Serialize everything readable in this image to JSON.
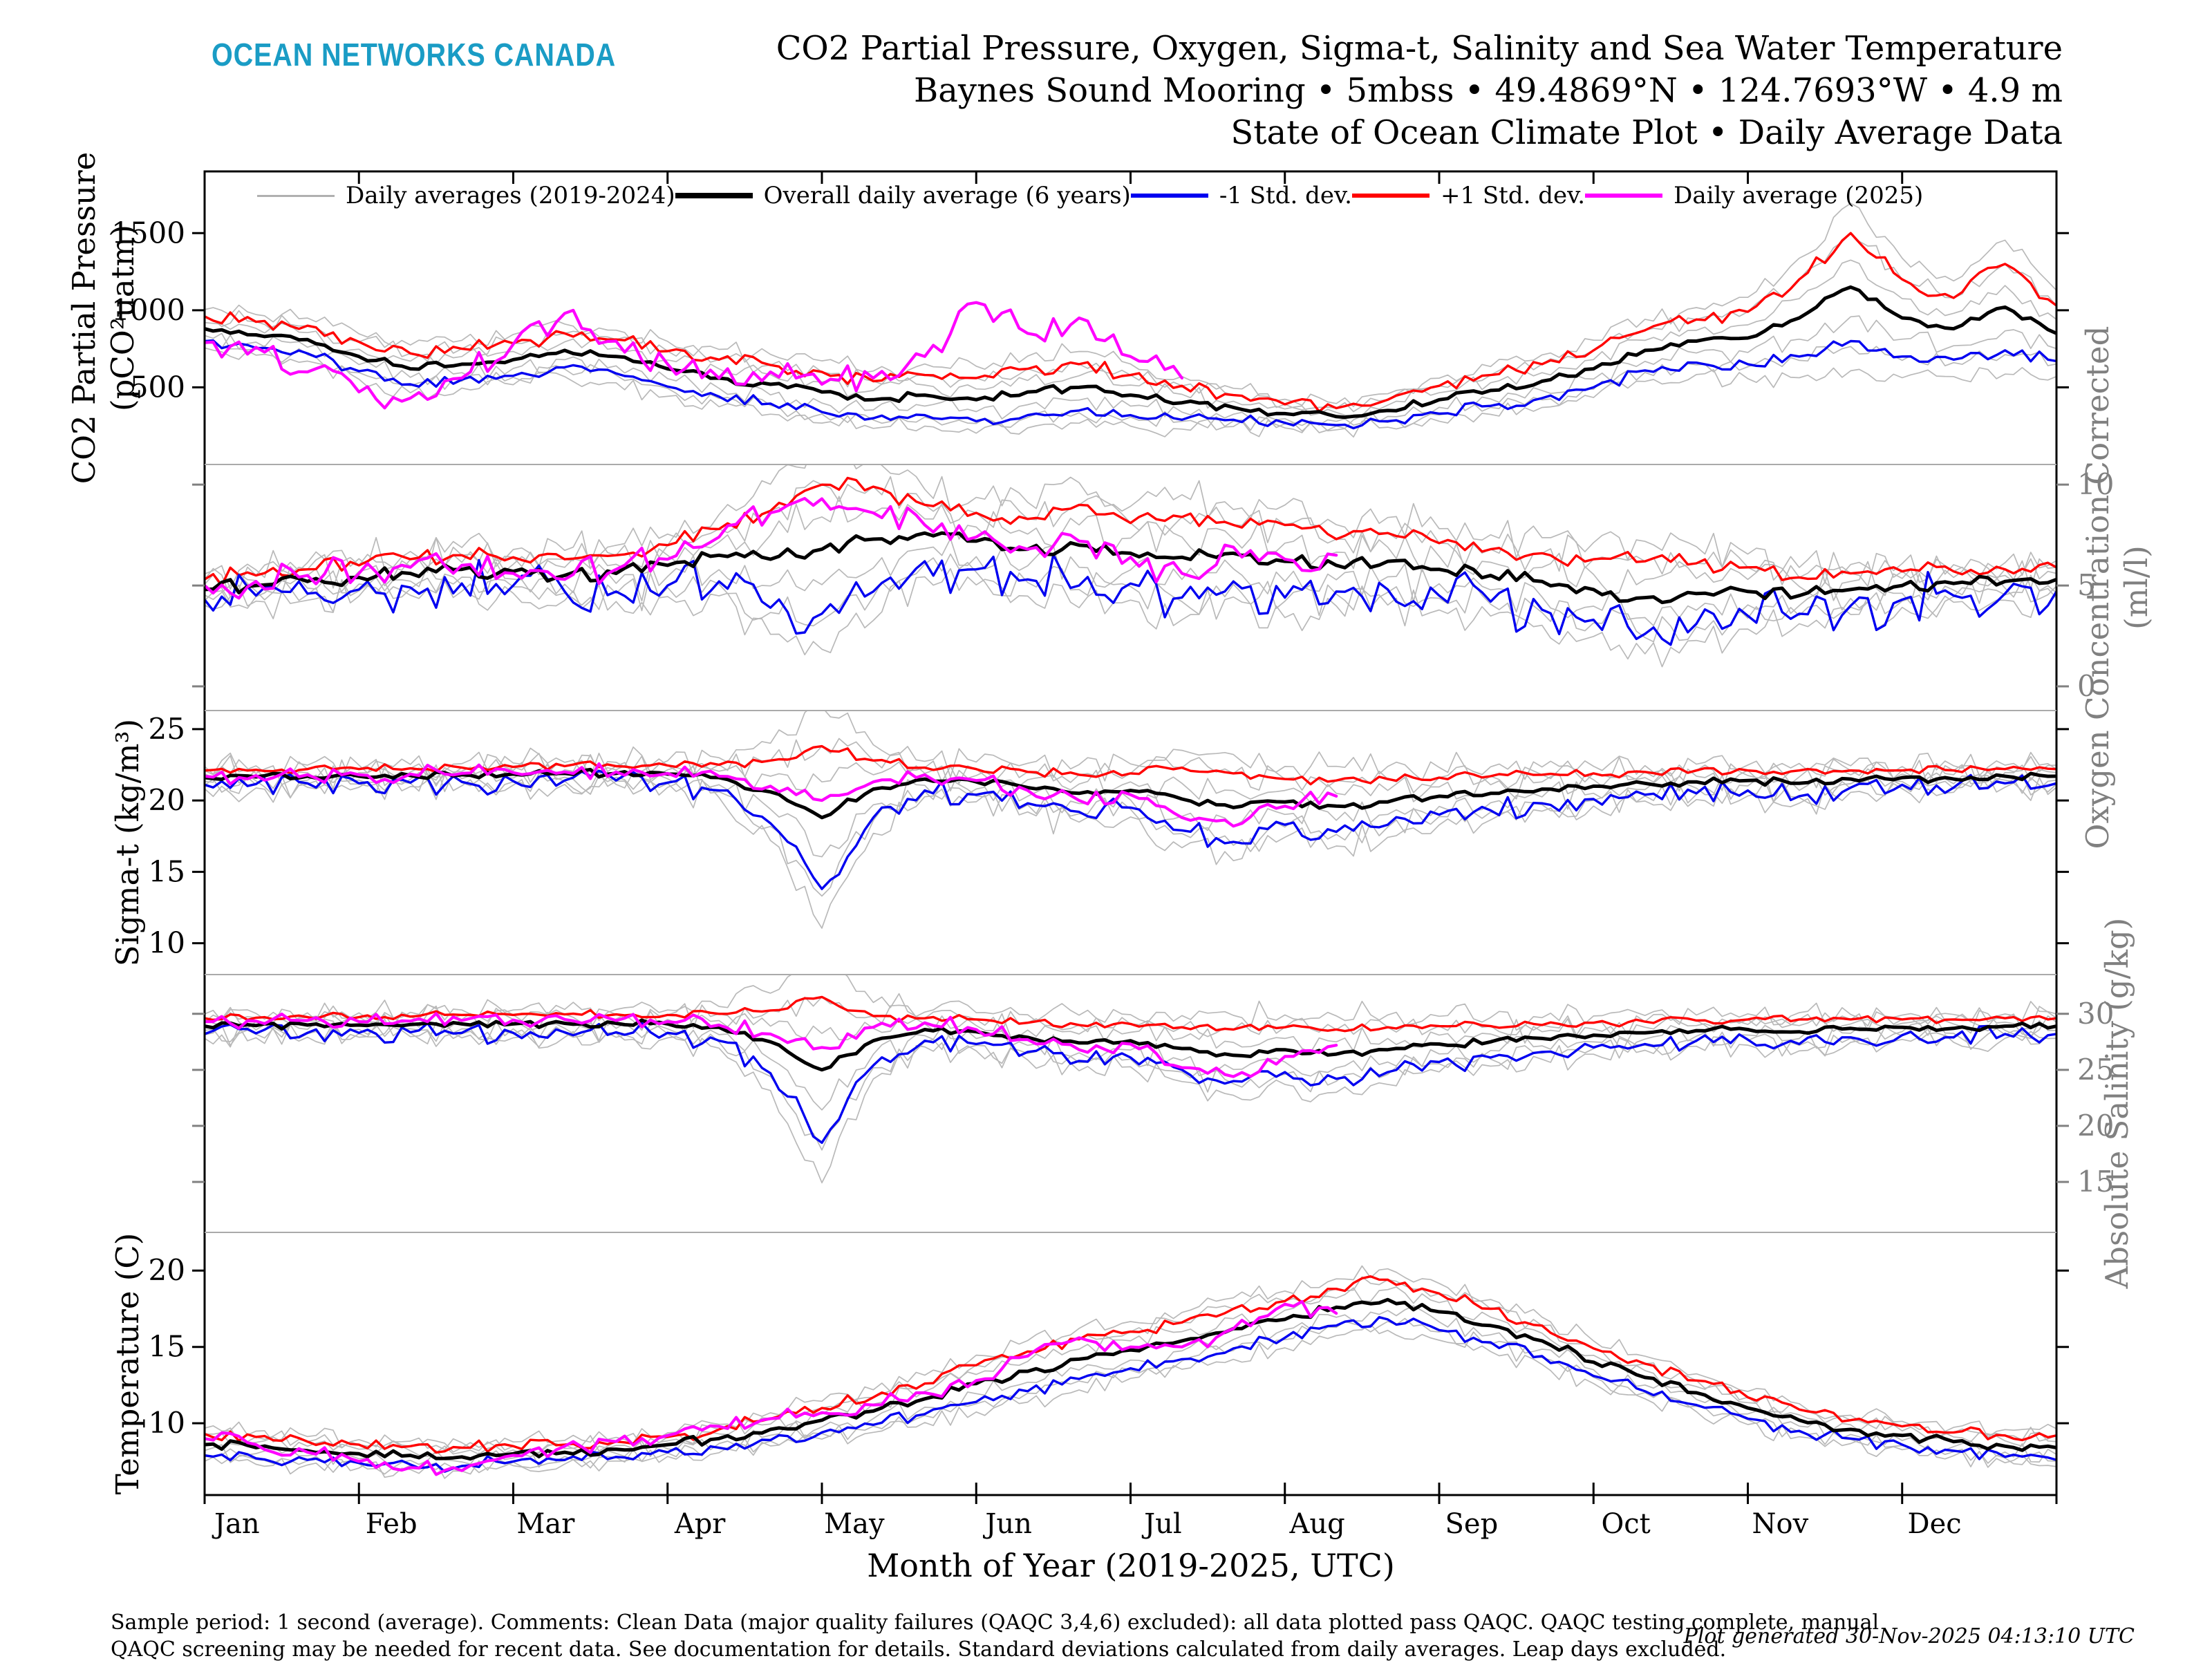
{
  "header": {
    "logo_text": "OCEAN NETWORKS CANADA",
    "logo_color": "#1a9cc5",
    "title_lines": [
      "CO2 Partial Pressure, Oxygen, Sigma-t, Salinity and Sea Water Temperature",
      "Baynes Sound Mooring • 5mbss • 49.4869°N • 124.7693°W • 4.9 m",
      "State of Ocean Climate Plot • Daily Average Data"
    ]
  },
  "legend": {
    "items": [
      {
        "label": "Daily averages (2019-2024)",
        "color": "#b0b0b0",
        "thickness": 3
      },
      {
        "label": "Overall daily average (6 years)",
        "color": "#000000",
        "thickness": 8
      },
      {
        "label": "-1 Std. dev.",
        "color": "#0000f0",
        "thickness": 6
      },
      {
        "label": "+1 Std. dev.",
        "color": "#ff0000",
        "thickness": 6
      },
      {
        "label": "Daily average (2025)",
        "color": "#ff00ff",
        "thickness": 6
      }
    ]
  },
  "x_axis": {
    "label": "Month of Year (2019-2025, UTC)",
    "months": [
      "Jan",
      "Feb",
      "Mar",
      "Apr",
      "May",
      "Jun",
      "Jul",
      "Aug",
      "Sep",
      "Oct",
      "Nov",
      "Dec"
    ]
  },
  "colors": {
    "black": "#000000",
    "red": "#ff0000",
    "blue": "#0000f0",
    "magenta": "#ff00ff",
    "gray_line": "#b9b9b9",
    "axis_gray": "#808080",
    "separator": "#aaaaaa"
  },
  "footer": {
    "line1": "Sample period: 1 second (average). Comments: Clean Data (major quality failures (QAQC 3,4,6) excluded): all data plotted pass QAQC. QAQC testing complete, manual",
    "line2": "QAQC screening may be needed for recent data. See documentation for details. Standard deviations calculated from daily averages. Leap days excluded.",
    "generated": "Plot generated 30-Nov-2025 04:13:10 UTC"
  },
  "render": {
    "gray_trace_std_multipliers": [
      1.55,
      1.0,
      0.5,
      -0.55,
      -1.1,
      -1.55
    ],
    "points_per_year": 37
  },
  "chart_data": [
    {
      "type": "line",
      "name": "co2",
      "axis_label": [
        "CO2 Partial Pressure",
        "(pCO²uatm)"
      ],
      "axis_side": "left",
      "ylim": [
        0,
        1900
      ],
      "yticks": [
        500,
        1000,
        1500
      ],
      "series": {
        "mean": [
          880,
          840,
          810,
          700,
          620,
          650,
          680,
          740,
          700,
          620,
          560,
          520,
          470,
          420,
          450,
          420,
          470,
          500,
          450,
          400,
          370,
          330,
          310,
          350,
          420,
          480,
          540,
          620,
          740,
          800,
          820,
          950,
          1150,
          950,
          880,
          1020,
          850
        ],
        "std": [
          80,
          85,
          90,
          95,
          100,
          100,
          105,
          110,
          110,
          115,
          120,
          125,
          130,
          120,
          130,
          140,
          150,
          150,
          130,
          110,
          80,
          60,
          55,
          70,
          90,
          100,
          110,
          120,
          130,
          140,
          170,
          250,
          350,
          250,
          200,
          280,
          180
        ],
        "daily_2025": [
          790,
          760,
          600,
          470,
          430,
          560,
          780,
          980,
          800,
          650,
          560,
          600,
          520,
          560,
          700,
          1050,
          850,
          950,
          700,
          560
        ]
      },
      "jitter": {
        "gray": 70,
        "red": 55,
        "blue": 45,
        "mean": 30,
        "m2025": 110
      }
    },
    {
      "type": "line",
      "name": "oxygen",
      "axis_label": [
        "Oxygen Concentration Corrected",
        "(ml/l)"
      ],
      "axis_side": "right",
      "ylim": [
        -1.2,
        11.0
      ],
      "yticks": [
        0,
        5,
        10
      ],
      "series": {
        "mean": [
          4.8,
          5.0,
          5.2,
          5.4,
          5.6,
          5.8,
          5.7,
          5.5,
          5.6,
          6.0,
          6.5,
          6.3,
          6.8,
          7.3,
          7.6,
          7.2,
          6.8,
          7.0,
          6.6,
          6.4,
          6.6,
          6.2,
          6.0,
          6.2,
          5.8,
          5.5,
          5.2,
          4.8,
          4.4,
          4.6,
          4.7,
          4.5,
          4.8,
          5.0,
          5.1,
          5.2,
          5.3
        ],
        "std": [
          0.5,
          0.5,
          0.6,
          0.6,
          0.7,
          0.7,
          0.7,
          0.8,
          0.9,
          1.0,
          1.3,
          2.4,
          3.2,
          2.6,
          1.4,
          1.4,
          1.5,
          2.0,
          1.5,
          2.0,
          1.4,
          1.8,
          1.3,
          1.4,
          1.3,
          1.3,
          1.4,
          1.5,
          1.8,
          1.5,
          1.2,
          0.9,
          0.8,
          0.7,
          0.6,
          0.6,
          0.6
        ],
        "daily_2025": [
          5.0,
          5.2,
          5.5,
          5.6,
          5.9,
          6.0,
          5.6,
          5.3,
          5.8,
          6.3,
          7.4,
          8.6,
          9.3,
          8.6,
          8.0,
          7.4,
          6.8,
          7.2,
          6.4,
          5.6,
          6.9,
          6.3,
          6.5
        ]
      },
      "jitter": {
        "gray": 1.1,
        "red": 0.5,
        "blue": 1.4,
        "mean": 0.4,
        "m2025": 0.9
      }
    },
    {
      "type": "line",
      "name": "sigma-t",
      "axis_label": [
        "Sigma-t (kg/m³)"
      ],
      "axis_side": "left",
      "ylim": [
        7.8,
        26.3
      ],
      "yticks": [
        10,
        15,
        20,
        25
      ],
      "series": {
        "mean": [
          21.6,
          21.65,
          21.7,
          21.7,
          21.75,
          21.8,
          21.85,
          21.9,
          21.9,
          21.85,
          21.6,
          20.6,
          18.8,
          20.8,
          21.5,
          21.3,
          20.9,
          20.5,
          20.7,
          20.1,
          19.5,
          19.9,
          19.6,
          19.9,
          20.3,
          20.5,
          20.8,
          21.0,
          21.2,
          21.3,
          21.4,
          21.2,
          21.5,
          21.6,
          21.5,
          21.7,
          21.7
        ],
        "std": [
          0.5,
          0.5,
          0.5,
          0.5,
          0.5,
          0.5,
          0.5,
          0.5,
          0.5,
          0.6,
          0.9,
          2.2,
          5.0,
          2.0,
          0.8,
          0.9,
          1.1,
          1.3,
          1.2,
          2.2,
          2.4,
          1.6,
          1.8,
          1.6,
          1.3,
          1.2,
          1.0,
          0.9,
          0.8,
          0.8,
          0.7,
          0.9,
          0.6,
          0.5,
          0.6,
          0.5,
          0.5
        ],
        "daily_2025": [
          21.7,
          21.75,
          21.8,
          21.8,
          21.85,
          21.9,
          21.95,
          22.0,
          22.0,
          21.9,
          21.7,
          21.0,
          20.0,
          21.3,
          21.8,
          21.4,
          20.7,
          20.0,
          20.4,
          18.8,
          18.2,
          19.6,
          20.3
        ]
      },
      "jitter": {
        "gray": 1.2,
        "red": 0.35,
        "blue": 0.9,
        "mean": 0.3,
        "m2025": 0.7
      }
    },
    {
      "type": "line",
      "name": "salinity",
      "axis_label": [
        "Absolute Salinity (g/kg)"
      ],
      "axis_side": "right",
      "ylim": [
        10.5,
        33.5
      ],
      "yticks": [
        15,
        20,
        25,
        30
      ],
      "series": {
        "mean": [
          28.9,
          28.95,
          29.0,
          29.0,
          29.05,
          29.1,
          29.1,
          29.15,
          29.15,
          29.1,
          28.8,
          27.5,
          25.0,
          27.6,
          28.6,
          28.4,
          27.9,
          27.4,
          27.6,
          26.9,
          26.3,
          26.8,
          26.4,
          26.8,
          27.3,
          27.5,
          27.8,
          28.1,
          28.3,
          28.5,
          28.6,
          28.4,
          28.7,
          28.8,
          28.7,
          28.9,
          28.9
        ],
        "std": [
          0.7,
          0.7,
          0.7,
          0.7,
          0.7,
          0.8,
          0.8,
          0.8,
          0.8,
          0.8,
          1.2,
          2.8,
          6.5,
          2.2,
          1.0,
          1.1,
          1.3,
          1.6,
          1.5,
          1.9,
          2.3,
          2.0,
          2.2,
          2.0,
          1.6,
          1.4,
          1.2,
          1.1,
          1.0,
          0.9,
          0.9,
          1.1,
          0.8,
          0.7,
          0.8,
          0.7,
          0.7
        ],
        "daily_2025": [
          29.3,
          29.35,
          29.4,
          29.3,
          29.35,
          29.4,
          29.45,
          29.5,
          29.4,
          29.3,
          29.0,
          28.2,
          27.0,
          28.8,
          29.2,
          28.6,
          27.7,
          26.8,
          27.3,
          25.2,
          24.4,
          26.2,
          27.2
        ]
      },
      "jitter": {
        "gray": 1.3,
        "red": 0.4,
        "blue": 1.0,
        "mean": 0.35,
        "m2025": 0.8
      }
    },
    {
      "type": "line",
      "name": "temperature",
      "axis_label": [
        "Temperature (C)"
      ],
      "axis_side": "left",
      "ylim": [
        5.3,
        22.5
      ],
      "yticks": [
        10,
        15,
        20
      ],
      "series": {
        "mean": [
          8.6,
          8.4,
          8.2,
          8.0,
          7.9,
          7.8,
          8.0,
          8.1,
          8.3,
          8.6,
          9.0,
          9.6,
          10.2,
          10.8,
          11.6,
          12.6,
          13.4,
          14.2,
          14.8,
          15.4,
          16.2,
          16.8,
          17.6,
          18.1,
          17.3,
          16.4,
          15.4,
          14.0,
          13.0,
          12.0,
          11.0,
          10.2,
          9.6,
          9.2,
          8.8,
          8.5,
          8.4
        ],
        "std": [
          0.7,
          0.7,
          0.6,
          0.6,
          0.6,
          0.6,
          0.5,
          0.5,
          0.5,
          0.5,
          0.6,
          0.7,
          0.8,
          0.9,
          1.0,
          1.2,
          1.3,
          1.3,
          1.2,
          1.2,
          1.3,
          1.2,
          1.2,
          1.3,
          1.2,
          1.1,
          1.0,
          0.9,
          0.9,
          0.8,
          0.7,
          0.7,
          0.6,
          0.6,
          0.6,
          0.7,
          0.8
        ],
        "daily_2025": [
          9.0,
          8.6,
          8.1,
          7.5,
          7.1,
          6.9,
          7.9,
          8.5,
          8.8,
          9.2,
          9.8,
          10.3,
          10.7,
          11.2,
          12.0,
          12.8,
          14.4,
          15.6,
          15.0,
          15.0,
          16.2,
          17.8,
          17.2
        ]
      },
      "jitter": {
        "gray": 0.7,
        "red": 0.5,
        "blue": 0.5,
        "mean": 0.35,
        "m2025": 0.6
      }
    }
  ]
}
